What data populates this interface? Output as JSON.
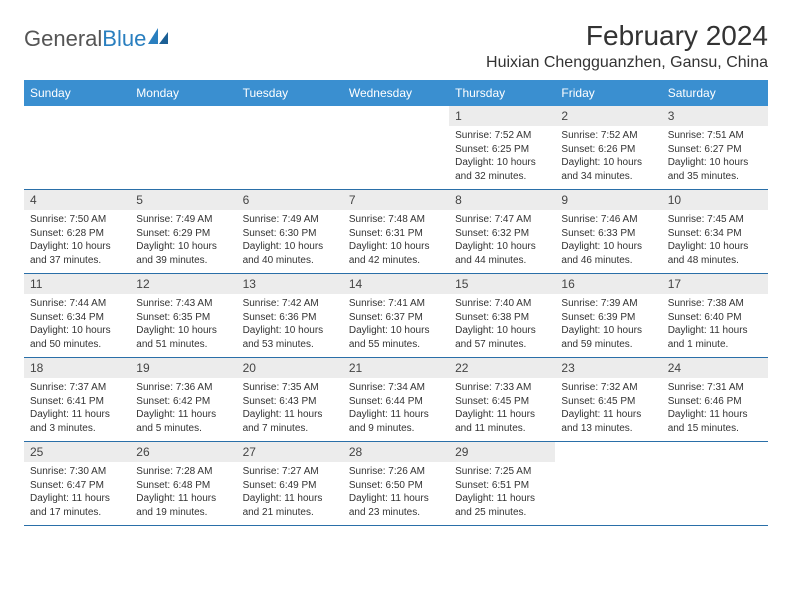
{
  "brand": {
    "part1": "General",
    "part2": "Blue"
  },
  "title": "February 2024",
  "location": "Huixian Chengguanzhen, Gansu, China",
  "colors": {
    "header_bg": "#3a8fd0",
    "header_text": "#ffffff",
    "daynum_bg": "#ececec",
    "border": "#2a6fa8",
    "logo_gray": "#555555",
    "logo_blue": "#2a7fbf",
    "text": "#333333",
    "background": "#ffffff"
  },
  "typography": {
    "title_fontsize": 28,
    "location_fontsize": 16,
    "dayheader_fontsize": 12,
    "daynum_fontsize": 12,
    "body_fontsize": 10
  },
  "day_names": [
    "Sunday",
    "Monday",
    "Tuesday",
    "Wednesday",
    "Thursday",
    "Friday",
    "Saturday"
  ],
  "weeks": [
    [
      {
        "day": "",
        "sunrise": "",
        "sunset": "",
        "daylight": ""
      },
      {
        "day": "",
        "sunrise": "",
        "sunset": "",
        "daylight": ""
      },
      {
        "day": "",
        "sunrise": "",
        "sunset": "",
        "daylight": ""
      },
      {
        "day": "",
        "sunrise": "",
        "sunset": "",
        "daylight": ""
      },
      {
        "day": "1",
        "sunrise": "Sunrise: 7:52 AM",
        "sunset": "Sunset: 6:25 PM",
        "daylight": "Daylight: 10 hours and 32 minutes."
      },
      {
        "day": "2",
        "sunrise": "Sunrise: 7:52 AM",
        "sunset": "Sunset: 6:26 PM",
        "daylight": "Daylight: 10 hours and 34 minutes."
      },
      {
        "day": "3",
        "sunrise": "Sunrise: 7:51 AM",
        "sunset": "Sunset: 6:27 PM",
        "daylight": "Daylight: 10 hours and 35 minutes."
      }
    ],
    [
      {
        "day": "4",
        "sunrise": "Sunrise: 7:50 AM",
        "sunset": "Sunset: 6:28 PM",
        "daylight": "Daylight: 10 hours and 37 minutes."
      },
      {
        "day": "5",
        "sunrise": "Sunrise: 7:49 AM",
        "sunset": "Sunset: 6:29 PM",
        "daylight": "Daylight: 10 hours and 39 minutes."
      },
      {
        "day": "6",
        "sunrise": "Sunrise: 7:49 AM",
        "sunset": "Sunset: 6:30 PM",
        "daylight": "Daylight: 10 hours and 40 minutes."
      },
      {
        "day": "7",
        "sunrise": "Sunrise: 7:48 AM",
        "sunset": "Sunset: 6:31 PM",
        "daylight": "Daylight: 10 hours and 42 minutes."
      },
      {
        "day": "8",
        "sunrise": "Sunrise: 7:47 AM",
        "sunset": "Sunset: 6:32 PM",
        "daylight": "Daylight: 10 hours and 44 minutes."
      },
      {
        "day": "9",
        "sunrise": "Sunrise: 7:46 AM",
        "sunset": "Sunset: 6:33 PM",
        "daylight": "Daylight: 10 hours and 46 minutes."
      },
      {
        "day": "10",
        "sunrise": "Sunrise: 7:45 AM",
        "sunset": "Sunset: 6:34 PM",
        "daylight": "Daylight: 10 hours and 48 minutes."
      }
    ],
    [
      {
        "day": "11",
        "sunrise": "Sunrise: 7:44 AM",
        "sunset": "Sunset: 6:34 PM",
        "daylight": "Daylight: 10 hours and 50 minutes."
      },
      {
        "day": "12",
        "sunrise": "Sunrise: 7:43 AM",
        "sunset": "Sunset: 6:35 PM",
        "daylight": "Daylight: 10 hours and 51 minutes."
      },
      {
        "day": "13",
        "sunrise": "Sunrise: 7:42 AM",
        "sunset": "Sunset: 6:36 PM",
        "daylight": "Daylight: 10 hours and 53 minutes."
      },
      {
        "day": "14",
        "sunrise": "Sunrise: 7:41 AM",
        "sunset": "Sunset: 6:37 PM",
        "daylight": "Daylight: 10 hours and 55 minutes."
      },
      {
        "day": "15",
        "sunrise": "Sunrise: 7:40 AM",
        "sunset": "Sunset: 6:38 PM",
        "daylight": "Daylight: 10 hours and 57 minutes."
      },
      {
        "day": "16",
        "sunrise": "Sunrise: 7:39 AM",
        "sunset": "Sunset: 6:39 PM",
        "daylight": "Daylight: 10 hours and 59 minutes."
      },
      {
        "day": "17",
        "sunrise": "Sunrise: 7:38 AM",
        "sunset": "Sunset: 6:40 PM",
        "daylight": "Daylight: 11 hours and 1 minute."
      }
    ],
    [
      {
        "day": "18",
        "sunrise": "Sunrise: 7:37 AM",
        "sunset": "Sunset: 6:41 PM",
        "daylight": "Daylight: 11 hours and 3 minutes."
      },
      {
        "day": "19",
        "sunrise": "Sunrise: 7:36 AM",
        "sunset": "Sunset: 6:42 PM",
        "daylight": "Daylight: 11 hours and 5 minutes."
      },
      {
        "day": "20",
        "sunrise": "Sunrise: 7:35 AM",
        "sunset": "Sunset: 6:43 PM",
        "daylight": "Daylight: 11 hours and 7 minutes."
      },
      {
        "day": "21",
        "sunrise": "Sunrise: 7:34 AM",
        "sunset": "Sunset: 6:44 PM",
        "daylight": "Daylight: 11 hours and 9 minutes."
      },
      {
        "day": "22",
        "sunrise": "Sunrise: 7:33 AM",
        "sunset": "Sunset: 6:45 PM",
        "daylight": "Daylight: 11 hours and 11 minutes."
      },
      {
        "day": "23",
        "sunrise": "Sunrise: 7:32 AM",
        "sunset": "Sunset: 6:45 PM",
        "daylight": "Daylight: 11 hours and 13 minutes."
      },
      {
        "day": "24",
        "sunrise": "Sunrise: 7:31 AM",
        "sunset": "Sunset: 6:46 PM",
        "daylight": "Daylight: 11 hours and 15 minutes."
      }
    ],
    [
      {
        "day": "25",
        "sunrise": "Sunrise: 7:30 AM",
        "sunset": "Sunset: 6:47 PM",
        "daylight": "Daylight: 11 hours and 17 minutes."
      },
      {
        "day": "26",
        "sunrise": "Sunrise: 7:28 AM",
        "sunset": "Sunset: 6:48 PM",
        "daylight": "Daylight: 11 hours and 19 minutes."
      },
      {
        "day": "27",
        "sunrise": "Sunrise: 7:27 AM",
        "sunset": "Sunset: 6:49 PM",
        "daylight": "Daylight: 11 hours and 21 minutes."
      },
      {
        "day": "28",
        "sunrise": "Sunrise: 7:26 AM",
        "sunset": "Sunset: 6:50 PM",
        "daylight": "Daylight: 11 hours and 23 minutes."
      },
      {
        "day": "29",
        "sunrise": "Sunrise: 7:25 AM",
        "sunset": "Sunset: 6:51 PM",
        "daylight": "Daylight: 11 hours and 25 minutes."
      },
      {
        "day": "",
        "sunrise": "",
        "sunset": "",
        "daylight": ""
      },
      {
        "day": "",
        "sunrise": "",
        "sunset": "",
        "daylight": ""
      }
    ]
  ]
}
